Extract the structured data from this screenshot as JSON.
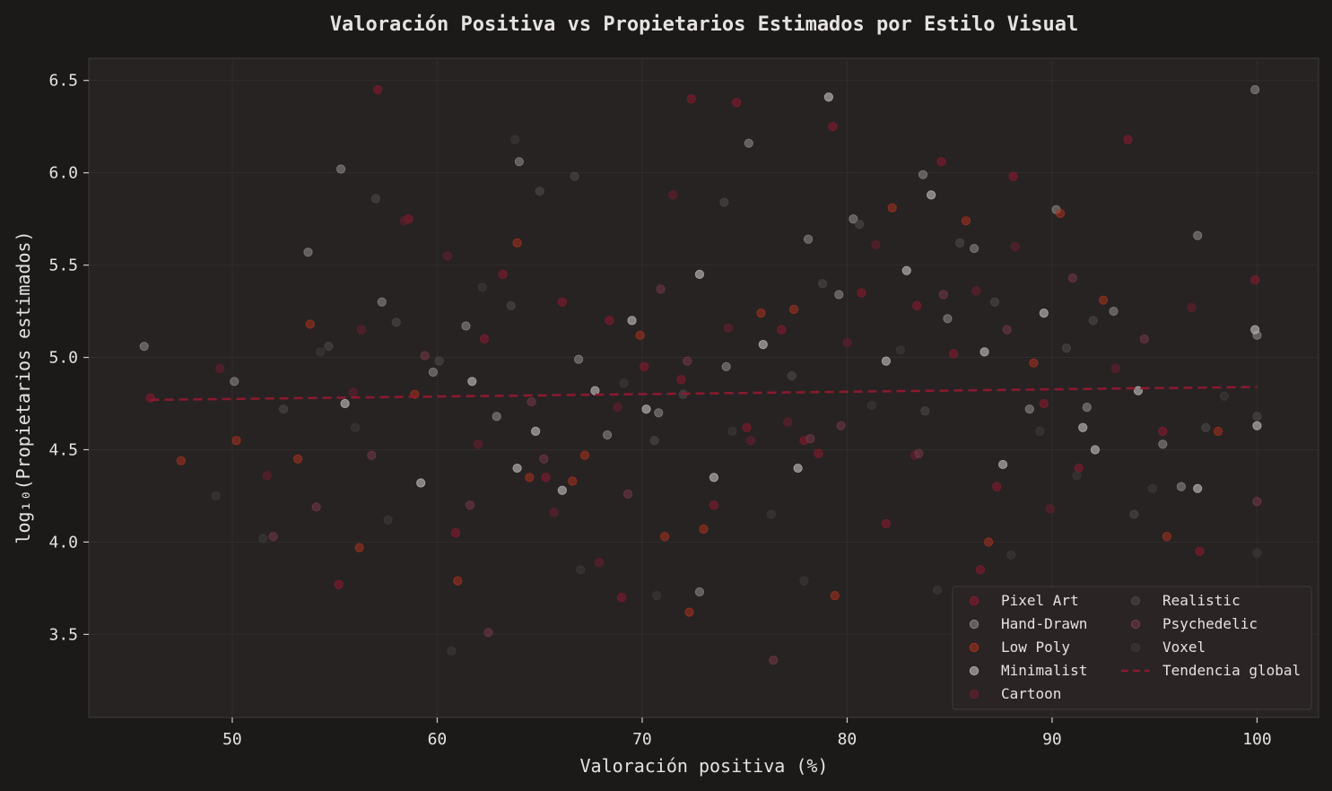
{
  "chart_data": {
    "type": "scatter",
    "title": "Valoración Positiva vs Propietarios Estimados por Estilo Visual",
    "xlabel": "Valoración positiva (%)",
    "ylabel": "log₁₀(Propietarios estimados)",
    "xlim": [
      43,
      103
    ],
    "ylim": [
      3.05,
      6.62
    ],
    "xticks": [
      50,
      60,
      70,
      80,
      90,
      100
    ],
    "yticks": [
      3.5,
      4.0,
      4.5,
      5.0,
      5.5,
      6.0,
      6.5
    ],
    "xtick_labels": [
      "50",
      "60",
      "70",
      "80",
      "90",
      "100"
    ],
    "ytick_labels": [
      "3.5",
      "4.0",
      "4.5",
      "5.0",
      "5.5",
      "6.0",
      "6.5"
    ],
    "grid": true,
    "legend_position": "bottom-right",
    "trend": {
      "name": "Tendencia global",
      "x": [
        46,
        100
      ],
      "y": [
        4.77,
        4.84
      ],
      "color": "#8b1a2e"
    },
    "series": [
      {
        "name": "Pixel Art",
        "color": "#8b1a2e",
        "alpha": 0.55,
        "x": [
          46.0,
          57.1,
          63.2,
          66.1,
          70.1,
          72.4,
          74.6,
          79.3,
          84.6,
          88.1,
          93.7,
          99.9,
          58.6,
          62.3,
          68.4,
          71.9,
          76.8,
          80.7,
          85.2,
          89.6,
          95.4,
          69.0,
          73.5,
          77.9,
          81.9,
          86.5,
          91.3,
          55.2,
          60.9,
          65.3,
          75.1,
          78.6,
          83.4,
          87.3,
          97.2
        ],
        "y": [
          4.78,
          6.45,
          5.45,
          5.3,
          4.95,
          6.4,
          6.38,
          6.25,
          6.06,
          5.98,
          6.18,
          5.42,
          5.75,
          5.1,
          5.2,
          4.88,
          5.15,
          5.35,
          5.02,
          4.75,
          4.6,
          3.7,
          4.2,
          4.55,
          4.1,
          3.85,
          4.4,
          3.77,
          4.05,
          4.35,
          4.62,
          4.48,
          5.28,
          4.3,
          3.95
        ]
      },
      {
        "name": "Hand-Drawn",
        "color": "#8a8686",
        "alpha": 0.6,
        "x": [
          45.7,
          50.1,
          53.7,
          55.3,
          57.3,
          59.8,
          61.4,
          64.0,
          66.9,
          70.8,
          72.8,
          75.2,
          78.1,
          80.3,
          83.7,
          86.2,
          88.9,
          90.2,
          93.0,
          95.4,
          97.1,
          99.9,
          100.0,
          62.9,
          68.3,
          74.1,
          79.6,
          84.9,
          91.7,
          96.3
        ],
        "y": [
          5.06,
          4.87,
          5.57,
          6.02,
          5.3,
          4.92,
          5.17,
          6.06,
          4.99,
          4.7,
          3.73,
          6.16,
          5.64,
          5.75,
          5.99,
          5.59,
          4.72,
          5.8,
          5.25,
          4.53,
          5.66,
          6.45,
          5.12,
          4.68,
          4.58,
          4.95,
          5.34,
          5.21,
          4.73,
          4.3
        ]
      },
      {
        "name": "Low Poly",
        "color": "#a8321e",
        "alpha": 0.55,
        "x": [
          47.5,
          50.2,
          53.8,
          56.2,
          61.0,
          64.5,
          67.2,
          69.9,
          72.3,
          75.8,
          79.4,
          82.2,
          85.8,
          89.1,
          92.5,
          95.6,
          98.1,
          53.2,
          58.9,
          63.9,
          71.1,
          77.4,
          86.9,
          90.4,
          66.6,
          73.0
        ],
        "y": [
          4.44,
          4.55,
          5.18,
          3.97,
          3.79,
          4.35,
          4.47,
          5.12,
          3.62,
          5.24,
          3.71,
          5.81,
          5.74,
          4.97,
          5.31,
          4.03,
          4.6,
          4.45,
          4.8,
          5.62,
          4.03,
          5.26,
          4.0,
          5.78,
          4.33,
          4.07
        ]
      },
      {
        "name": "Minimalist",
        "color": "#b0acac",
        "alpha": 0.7,
        "x": [
          55.5,
          59.2,
          63.9,
          66.1,
          69.5,
          72.8,
          75.9,
          79.1,
          81.9,
          84.1,
          86.7,
          89.6,
          92.1,
          94.2,
          97.1,
          99.9,
          100.0,
          61.7,
          67.7,
          73.5,
          77.6,
          82.9,
          87.6,
          91.5,
          64.8,
          70.2
        ],
        "y": [
          4.75,
          4.32,
          4.4,
          4.28,
          5.2,
          5.45,
          5.07,
          6.41,
          4.98,
          5.88,
          5.03,
          5.24,
          4.5,
          4.82,
          4.29,
          5.15,
          4.63,
          4.87,
          4.82,
          4.35,
          4.4,
          5.47,
          4.42,
          4.62,
          4.6,
          4.72
        ]
      },
      {
        "name": "Cartoon",
        "color": "#6e1d30",
        "alpha": 0.5,
        "x": [
          49.4,
          51.7,
          55.9,
          58.4,
          62.0,
          65.7,
          68.8,
          71.5,
          74.2,
          77.1,
          80.0,
          83.3,
          86.3,
          89.9,
          93.1,
          96.8,
          56.3,
          60.5,
          67.9,
          75.3,
          81.4,
          88.2
        ],
        "y": [
          4.94,
          4.36,
          4.81,
          5.74,
          4.53,
          4.16,
          4.73,
          5.88,
          5.16,
          4.65,
          5.08,
          4.47,
          5.36,
          4.18,
          4.94,
          5.27,
          5.15,
          5.55,
          3.89,
          4.55,
          5.61,
          5.6
        ]
      },
      {
        "name": "Realistic",
        "color": "#4a4545",
        "alpha": 0.65,
        "x": [
          52.5,
          54.7,
          57.0,
          60.1,
          63.6,
          66.7,
          70.6,
          74.0,
          77.3,
          80.6,
          83.8,
          87.2,
          90.7,
          94.0,
          97.5,
          100.0,
          58.0,
          65.0,
          72.0,
          78.8,
          85.5,
          92.0
        ],
        "y": [
          4.72,
          5.06,
          5.86,
          4.98,
          5.28,
          5.98,
          4.55,
          5.84,
          4.9,
          5.72,
          4.71,
          5.3,
          5.05,
          4.15,
          4.62,
          4.68,
          5.19,
          5.9,
          4.8,
          5.4,
          5.62,
          5.2
        ]
      },
      {
        "name": "Psychedelic",
        "color": "#7a3a4a",
        "alpha": 0.5,
        "x": [
          52.0,
          54.1,
          56.8,
          61.6,
          62.5,
          65.2,
          69.3,
          72.2,
          76.4,
          79.7,
          83.5,
          87.8,
          91.0,
          94.5,
          100.0,
          59.4,
          64.6,
          70.9,
          78.2,
          84.7
        ],
        "y": [
          4.03,
          4.19,
          4.47,
          4.2,
          3.51,
          4.45,
          4.26,
          4.98,
          3.36,
          4.63,
          4.48,
          5.15,
          5.43,
          5.1,
          4.22,
          5.01,
          4.76,
          5.37,
          4.56,
          5.34
        ]
      },
      {
        "name": "Voxel",
        "color": "#3c3838",
        "alpha": 0.65,
        "x": [
          49.2,
          51.5,
          54.3,
          57.6,
          60.7,
          63.8,
          67.0,
          70.7,
          74.4,
          77.9,
          81.2,
          84.4,
          88.0,
          91.2,
          94.9,
          98.4,
          100.0,
          56.0,
          62.2,
          69.1,
          76.3,
          82.6,
          89.4
        ],
        "y": [
          4.25,
          4.02,
          5.03,
          4.12,
          3.41,
          6.18,
          3.85,
          3.71,
          4.6,
          3.79,
          4.74,
          3.74,
          3.93,
          4.36,
          4.29,
          4.79,
          3.94,
          4.62,
          5.38,
          4.86,
          4.15,
          5.04,
          4.6
        ]
      }
    ]
  }
}
